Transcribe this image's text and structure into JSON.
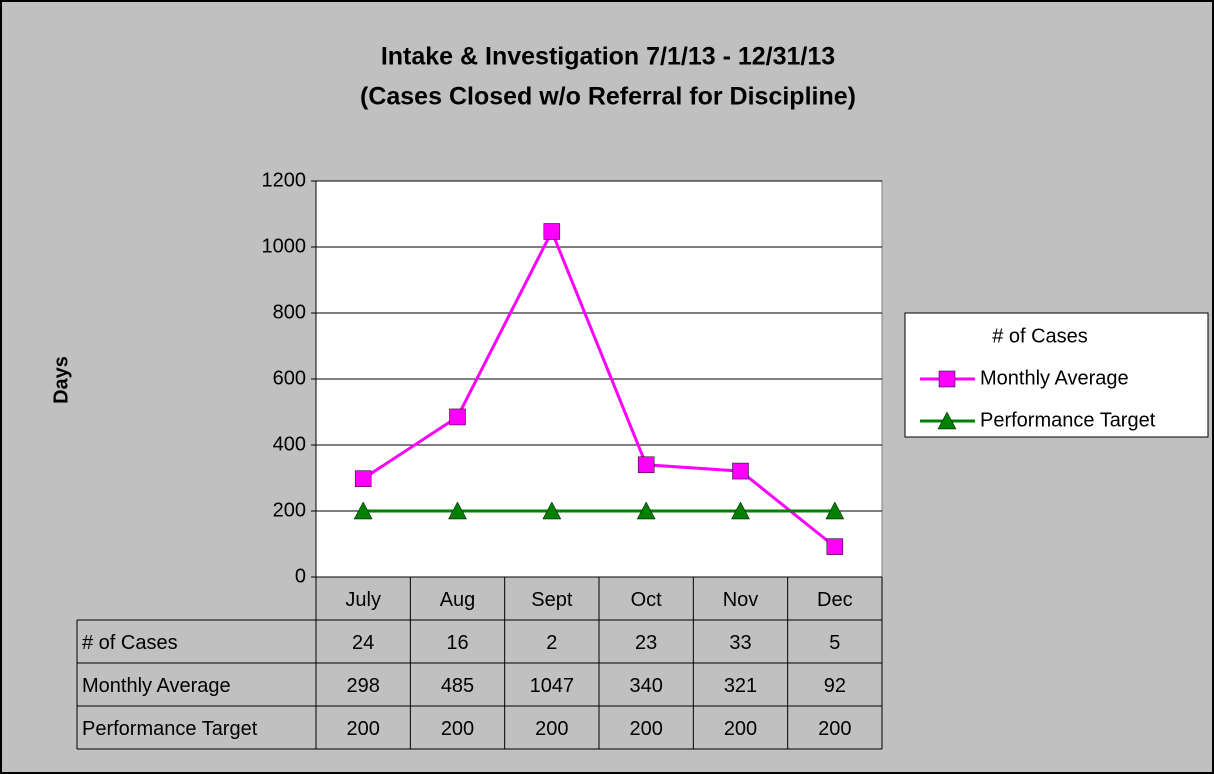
{
  "chart_data": {
    "type": "line",
    "title": [
      "Intake & Investigation 7/1/13 - 12/31/13",
      "(Cases Closed w/o Referral for Discipline)"
    ],
    "y_label": "Days",
    "categories": [
      "July",
      "Aug",
      "Sept",
      "Oct",
      "Nov",
      "Dec"
    ],
    "series": [
      {
        "name": "# of Cases",
        "values": [
          24,
          16,
          2,
          23,
          33,
          5
        ]
      },
      {
        "name": "Monthly Average",
        "color": "#ff00ff",
        "marker": "square",
        "values": [
          298,
          485,
          1047,
          340,
          321,
          92
        ]
      },
      {
        "name": "Performance Target",
        "color": "#008000",
        "marker": "triangle",
        "values": [
          200,
          200,
          200,
          200,
          200,
          200
        ]
      }
    ],
    "ylim": [
      0,
      1200
    ],
    "yticks": [
      0,
      200,
      400,
      600,
      800,
      1000,
      1200
    ],
    "grid": true,
    "legend": "right",
    "data_table": true
  }
}
